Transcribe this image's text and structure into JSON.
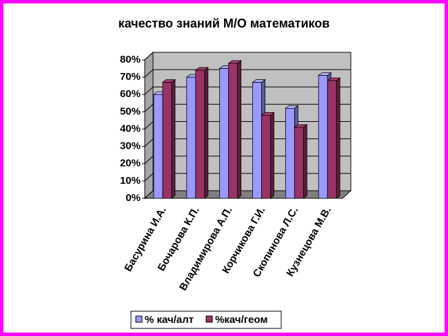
{
  "chart_data": {
    "type": "bar3d",
    "title": "качество знаний М/О математиков",
    "categories": [
      "Басурина И.А.",
      "Бочарова К.П.",
      "Владимирова А.П.",
      "Корчикова Г.И.",
      "Скопинова Л.С.",
      "Кузнецова М.В."
    ],
    "series": [
      {
        "name": "% кач/алт",
        "color": "#9999ff",
        "values": [
          60,
          70,
          75,
          67,
          52,
          71
        ]
      },
      {
        "name": "%кач/геом",
        "color": "#993366",
        "values": [
          67,
          74,
          78,
          48,
          41,
          68
        ]
      }
    ],
    "ylim": [
      0,
      80
    ],
    "yticks": [
      {
        "value": 0,
        "label": "0%"
      },
      {
        "value": 10,
        "label": "10%"
      },
      {
        "value": 20,
        "label": "20%"
      },
      {
        "value": 30,
        "label": "30%"
      },
      {
        "value": 40,
        "label": "40%"
      },
      {
        "value": 50,
        "label": "50%"
      },
      {
        "value": 60,
        "label": "60%"
      },
      {
        "value": 70,
        "label": "70%"
      },
      {
        "value": 80,
        "label": "80%"
      }
    ],
    "grid": true,
    "legend": "bottom"
  }
}
